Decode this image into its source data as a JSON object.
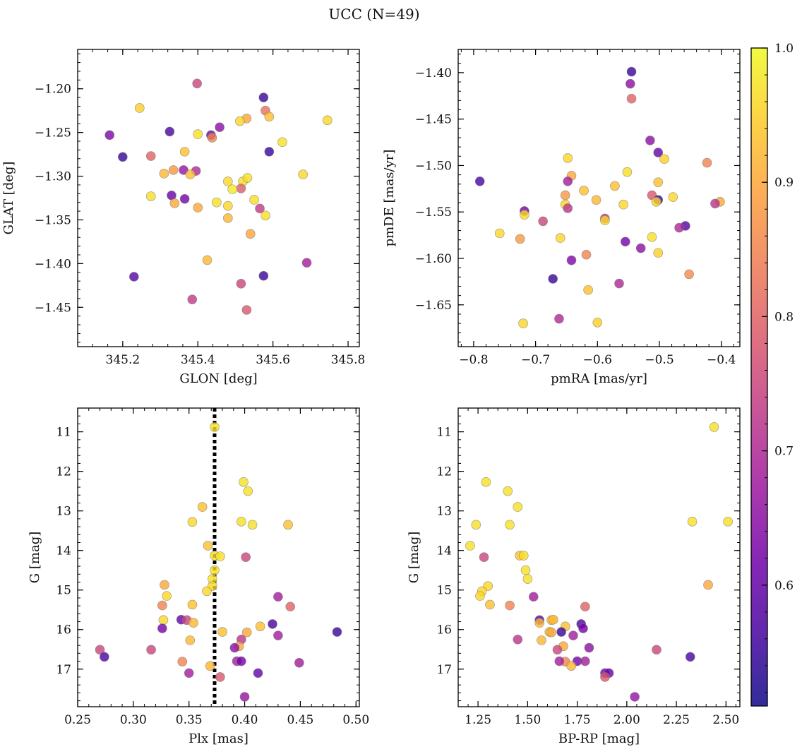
{
  "figure": {
    "title": "UCC (N=49)"
  },
  "chart_data": [
    {
      "type": "scatter",
      "panel": "top-left",
      "xlabel": "GLON [deg]",
      "ylabel": "GLAT [deg]",
      "xlim": [
        345.08,
        345.83
      ],
      "ylim": [
        -1.495,
        -1.155
      ],
      "x_invert": false,
      "y_invert": false,
      "xticks": [
        345.2,
        345.4,
        345.6,
        345.8
      ],
      "xtick_labels": [
        "345.2",
        "345.4",
        "345.6",
        "345.8"
      ],
      "yticks": [
        -1.2,
        -1.25,
        -1.3,
        -1.35,
        -1.4,
        -1.45
      ],
      "ytick_labels": [
        "−1.20",
        "−1.25",
        "−1.30",
        "−1.35",
        "−1.40",
        "−1.45"
      ],
      "xminor_step": 0.04,
      "yminor_step": 0.01,
      "points": [
        [
          345.398,
          -1.194,
          0.75
        ],
        [
          345.575,
          -1.21,
          0.55
        ],
        [
          345.245,
          -1.222,
          0.95
        ],
        [
          345.58,
          -1.225,
          0.82
        ],
        [
          345.59,
          -1.232,
          0.93
        ],
        [
          345.53,
          -1.234,
          0.9
        ],
        [
          345.745,
          -1.236,
          0.96
        ],
        [
          345.512,
          -1.237,
          0.96
        ],
        [
          345.458,
          -1.244,
          0.65
        ],
        [
          345.165,
          -1.253,
          0.63
        ],
        [
          345.325,
          -1.249,
          0.57
        ],
        [
          345.4,
          -1.252,
          0.97
        ],
        [
          345.435,
          -1.253,
          0.6
        ],
        [
          345.438,
          -1.256,
          0.85
        ],
        [
          345.625,
          -1.261,
          0.97
        ],
        [
          345.59,
          -1.272,
          0.55
        ],
        [
          345.365,
          -1.272,
          0.93
        ],
        [
          345.2,
          -1.278,
          0.55
        ],
        [
          345.275,
          -1.277,
          0.8
        ],
        [
          345.335,
          -1.293,
          0.88
        ],
        [
          345.362,
          -1.293,
          0.66
        ],
        [
          345.395,
          -1.294,
          0.7
        ],
        [
          345.31,
          -1.297,
          0.92
        ],
        [
          345.38,
          -1.298,
          0.93
        ],
        [
          345.68,
          -1.298,
          0.96
        ],
        [
          345.48,
          -1.306,
          0.96
        ],
        [
          345.52,
          -1.306,
          0.97
        ],
        [
          345.532,
          -1.302,
          0.97
        ],
        [
          345.515,
          -1.314,
          0.79
        ],
        [
          345.492,
          -1.315,
          0.98
        ],
        [
          345.275,
          -1.323,
          0.97
        ],
        [
          345.33,
          -1.322,
          0.6
        ],
        [
          345.365,
          -1.326,
          0.62
        ],
        [
          345.55,
          -1.327,
          0.97
        ],
        [
          345.338,
          -1.331,
          0.9
        ],
        [
          345.45,
          -1.33,
          0.97
        ],
        [
          345.48,
          -1.334,
          0.96
        ],
        [
          345.4,
          -1.336,
          0.9
        ],
        [
          345.565,
          -1.337,
          0.73
        ],
        [
          345.58,
          -1.345,
          0.97
        ],
        [
          345.48,
          -1.348,
          0.92
        ],
        [
          345.54,
          -1.366,
          0.9
        ],
        [
          345.425,
          -1.396,
          0.92
        ],
        [
          345.69,
          -1.399,
          0.68
        ],
        [
          345.23,
          -1.415,
          0.58
        ],
        [
          345.575,
          -1.414,
          0.55
        ],
        [
          345.515,
          -1.423,
          0.75
        ],
        [
          345.385,
          -1.441,
          0.73
        ],
        [
          345.53,
          -1.453,
          0.78
        ]
      ]
    },
    {
      "type": "scatter",
      "panel": "top-right",
      "xlabel": "pmRA [mas/yr]",
      "ylabel": "pmDE [mas/yr]",
      "xlim": [
        -0.825,
        -0.37
      ],
      "ylim": [
        -1.695,
        -1.375
      ],
      "x_invert": false,
      "y_invert": false,
      "xticks": [
        -0.8,
        -0.7,
        -0.6,
        -0.5,
        -0.4
      ],
      "xtick_labels": [
        "−0.8",
        "−0.7",
        "−0.6",
        "−0.5",
        "−0.4"
      ],
      "yticks": [
        -1.4,
        -1.45,
        -1.5,
        -1.55,
        -1.6,
        -1.65
      ],
      "ytick_labels": [
        "−1.40",
        "−1.45",
        "−1.50",
        "−1.55",
        "−1.60",
        "−1.65"
      ],
      "xminor_step": 0.02,
      "yminor_step": 0.01,
      "points": [
        [
          -0.545,
          -1.399,
          0.55
        ],
        [
          -0.547,
          -1.412,
          0.65
        ],
        [
          -0.545,
          -1.428,
          0.8
        ],
        [
          -0.515,
          -1.473,
          0.65
        ],
        [
          -0.502,
          -1.486,
          0.6
        ],
        [
          -0.648,
          -1.492,
          0.96
        ],
        [
          -0.492,
          -1.493,
          0.95
        ],
        [
          -0.423,
          -1.497,
          0.85
        ],
        [
          -0.552,
          -1.507,
          0.97
        ],
        [
          -0.642,
          -1.511,
          0.9
        ],
        [
          -0.79,
          -1.517,
          0.57
        ],
        [
          -0.648,
          -1.517,
          0.68
        ],
        [
          -0.502,
          -1.518,
          0.93
        ],
        [
          -0.622,
          -1.527,
          0.93
        ],
        [
          -0.572,
          -1.522,
          0.93
        ],
        [
          -0.652,
          -1.532,
          0.88
        ],
        [
          -0.512,
          -1.532,
          0.78
        ],
        [
          -0.478,
          -1.534,
          0.96
        ],
        [
          -0.602,
          -1.537,
          0.92
        ],
        [
          -0.502,
          -1.537,
          0.55
        ],
        [
          -0.505,
          -1.539,
          0.96
        ],
        [
          -0.402,
          -1.539,
          0.9
        ],
        [
          -0.558,
          -1.542,
          0.96
        ],
        [
          -0.652,
          -1.542,
          0.96
        ],
        [
          -0.41,
          -1.541,
          0.72
        ],
        [
          -0.648,
          -1.546,
          0.72
        ],
        [
          -0.718,
          -1.549,
          0.62
        ],
        [
          -0.718,
          -1.553,
          0.96
        ],
        [
          -0.588,
          -1.557,
          0.72
        ],
        [
          -0.588,
          -1.559,
          0.96
        ],
        [
          -0.688,
          -1.56,
          0.75
        ],
        [
          -0.458,
          -1.565,
          0.58
        ],
        [
          -0.468,
          -1.567,
          0.7
        ],
        [
          -0.758,
          -1.573,
          0.96
        ],
        [
          -0.512,
          -1.577,
          0.97
        ],
        [
          -0.66,
          -1.578,
          0.96
        ],
        [
          -0.725,
          -1.579,
          0.88
        ],
        [
          -0.555,
          -1.582,
          0.62
        ],
        [
          -0.53,
          -1.589,
          0.65
        ],
        [
          -0.502,
          -1.594,
          0.95
        ],
        [
          -0.618,
          -1.596,
          0.85
        ],
        [
          -0.642,
          -1.602,
          0.63
        ],
        [
          -0.452,
          -1.617,
          0.86
        ],
        [
          -0.672,
          -1.622,
          0.55
        ],
        [
          -0.565,
          -1.627,
          0.7
        ],
        [
          -0.615,
          -1.634,
          0.93
        ],
        [
          -0.662,
          -1.665,
          0.7
        ],
        [
          -0.72,
          -1.67,
          0.96
        ],
        [
          -0.6,
          -1.669,
          0.95
        ]
      ]
    },
    {
      "type": "scatter",
      "panel": "bottom-left",
      "xlabel": "Plx [mas]",
      "ylabel": "G [mag]",
      "xlim": [
        0.25,
        0.503
      ],
      "ylim": [
        10.4,
        17.95
      ],
      "x_invert": false,
      "y_invert": true,
      "xticks": [
        0.25,
        0.3,
        0.35,
        0.4,
        0.45,
        0.5
      ],
      "xtick_labels": [
        "0.25",
        "0.30",
        "0.35",
        "0.40",
        "0.45",
        "0.50"
      ],
      "yticks": [
        11,
        12,
        13,
        14,
        15,
        16,
        17
      ],
      "ytick_labels": [
        "11",
        "12",
        "13",
        "14",
        "15",
        "16",
        "17"
      ],
      "xminor_step": 0.01,
      "yminor_step": 0.2,
      "vline": {
        "x": 0.373,
        "style": "dotted",
        "color": "#000000"
      },
      "points": [
        [
          0.373,
          10.88,
          0.97
        ],
        [
          0.399,
          12.27,
          0.97
        ],
        [
          0.403,
          12.5,
          0.97
        ],
        [
          0.362,
          12.9,
          0.93
        ],
        [
          0.397,
          13.27,
          0.97
        ],
        [
          0.353,
          13.28,
          0.96
        ],
        [
          0.407,
          13.35,
          0.97
        ],
        [
          0.439,
          13.35,
          0.93
        ],
        [
          0.367,
          13.88,
          0.93
        ],
        [
          0.373,
          14.13,
          0.97
        ],
        [
          0.378,
          14.15,
          0.97
        ],
        [
          0.401,
          14.17,
          0.75
        ],
        [
          0.373,
          14.5,
          0.97
        ],
        [
          0.371,
          14.72,
          0.97
        ],
        [
          0.328,
          14.87,
          0.9
        ],
        [
          0.371,
          14.9,
          0.96
        ],
        [
          0.366,
          15.03,
          0.96
        ],
        [
          0.33,
          15.15,
          0.96
        ],
        [
          0.43,
          15.17,
          0.68
        ],
        [
          0.326,
          15.39,
          0.85
        ],
        [
          0.353,
          15.37,
          0.93
        ],
        [
          0.441,
          15.42,
          0.8
        ],
        [
          0.327,
          15.76,
          0.96
        ],
        [
          0.343,
          15.75,
          0.6
        ],
        [
          0.348,
          15.76,
          0.75
        ],
        [
          0.354,
          15.83,
          0.92
        ],
        [
          0.425,
          15.86,
          0.57
        ],
        [
          0.414,
          15.92,
          0.93
        ],
        [
          0.326,
          15.97,
          0.62
        ],
        [
          0.38,
          16.06,
          0.93
        ],
        [
          0.402,
          16.07,
          0.9
        ],
        [
          0.483,
          16.06,
          0.55
        ],
        [
          0.43,
          16.15,
          0.68
        ],
        [
          0.397,
          16.25,
          0.72
        ],
        [
          0.351,
          16.27,
          0.92
        ],
        [
          0.395,
          16.42,
          0.9
        ],
        [
          0.391,
          16.46,
          0.65
        ],
        [
          0.316,
          16.51,
          0.75
        ],
        [
          0.27,
          16.51,
          0.75
        ],
        [
          0.274,
          16.69,
          0.57
        ],
        [
          0.344,
          16.81,
          0.85
        ],
        [
          0.393,
          16.8,
          0.68
        ],
        [
          0.397,
          16.8,
          0.62
        ],
        [
          0.449,
          16.84,
          0.68
        ],
        [
          0.369,
          16.92,
          0.92
        ],
        [
          0.35,
          17.1,
          0.68
        ],
        [
          0.412,
          17.1,
          0.6
        ],
        [
          0.378,
          17.2,
          0.78
        ],
        [
          0.4,
          17.7,
          0.66
        ]
      ]
    },
    {
      "type": "scatter",
      "panel": "bottom-right",
      "xlabel": "BP-RP [mag]",
      "ylabel": "G [mag]",
      "xlim": [
        1.15,
        2.57
      ],
      "ylim": [
        10.4,
        17.95
      ],
      "x_invert": false,
      "y_invert": true,
      "xticks": [
        1.25,
        1.5,
        1.75,
        2.0,
        2.25,
        2.5
      ],
      "xtick_labels": [
        "1.25",
        "1.50",
        "1.75",
        "2.00",
        "2.25",
        "2.50"
      ],
      "yticks": [
        11,
        12,
        13,
        14,
        15,
        16,
        17
      ],
      "ytick_labels": [
        "11",
        "12",
        "13",
        "14",
        "15",
        "16",
        "17"
      ],
      "xminor_step": 0.05,
      "yminor_step": 0.2,
      "points": [
        [
          2.44,
          10.88,
          0.97
        ],
        [
          1.29,
          12.27,
          0.97
        ],
        [
          1.4,
          12.5,
          0.97
        ],
        [
          1.45,
          12.9,
          0.97
        ],
        [
          2.33,
          13.27,
          0.97
        ],
        [
          2.51,
          13.27,
          0.97
        ],
        [
          1.41,
          13.35,
          0.97
        ],
        [
          1.24,
          13.35,
          0.97
        ],
        [
          1.21,
          13.88,
          0.97
        ],
        [
          1.46,
          14.13,
          0.93
        ],
        [
          1.48,
          14.13,
          0.97
        ],
        [
          1.28,
          14.17,
          0.75
        ],
        [
          1.49,
          14.5,
          0.97
        ],
        [
          1.5,
          14.72,
          0.97
        ],
        [
          2.41,
          14.87,
          0.9
        ],
        [
          1.3,
          14.9,
          0.96
        ],
        [
          1.27,
          15.03,
          0.96
        ],
        [
          1.26,
          15.15,
          0.96
        ],
        [
          1.53,
          15.17,
          0.68
        ],
        [
          1.41,
          15.39,
          0.85
        ],
        [
          1.31,
          15.37,
          0.93
        ],
        [
          1.79,
          15.42,
          0.8
        ],
        [
          1.56,
          15.76,
          0.57
        ],
        [
          1.62,
          15.76,
          0.92
        ],
        [
          1.63,
          15.75,
          0.92
        ],
        [
          1.56,
          15.83,
          0.92
        ],
        [
          1.77,
          15.86,
          0.57
        ],
        [
          1.78,
          15.97,
          0.62
        ],
        [
          1.69,
          15.92,
          0.93
        ],
        [
          1.61,
          16.06,
          0.93
        ],
        [
          1.62,
          16.07,
          0.9
        ],
        [
          1.67,
          16.06,
          0.55
        ],
        [
          1.73,
          16.15,
          0.68
        ],
        [
          1.45,
          16.25,
          0.72
        ],
        [
          1.57,
          16.27,
          0.92
        ],
        [
          1.68,
          16.42,
          0.9
        ],
        [
          1.81,
          16.46,
          0.65
        ],
        [
          1.65,
          16.51,
          0.75
        ],
        [
          2.15,
          16.51,
          0.75
        ],
        [
          2.32,
          16.69,
          0.57
        ],
        [
          1.69,
          16.81,
          0.85
        ],
        [
          1.66,
          16.8,
          0.68
        ],
        [
          1.75,
          16.8,
          0.62
        ],
        [
          1.79,
          16.8,
          0.68
        ],
        [
          1.72,
          16.92,
          0.92
        ],
        [
          1.89,
          17.1,
          0.62
        ],
        [
          1.91,
          17.1,
          0.6
        ],
        [
          1.89,
          17.2,
          0.78
        ],
        [
          2.04,
          17.7,
          0.66
        ]
      ]
    }
  ],
  "colorbar": {
    "cmap": "plasma",
    "min": 0.51,
    "max": 1.0,
    "ticks": [
      0.6,
      0.7,
      0.8,
      0.9,
      1.0
    ],
    "tick_labels": [
      "0.6",
      "0.7",
      "0.8",
      "0.9",
      "1.0"
    ],
    "minor_step": 0.02,
    "stops": [
      "#0d0887",
      "#46039f",
      "#7201a8",
      "#9c179e",
      "#bd3786",
      "#d8576b",
      "#ed7953",
      "#fb9f3a",
      "#fdca26",
      "#f0f921"
    ]
  },
  "styles": {
    "marker_alpha": 0.8,
    "marker_edge": "#7a7a7a",
    "axis_color": "#000000"
  }
}
